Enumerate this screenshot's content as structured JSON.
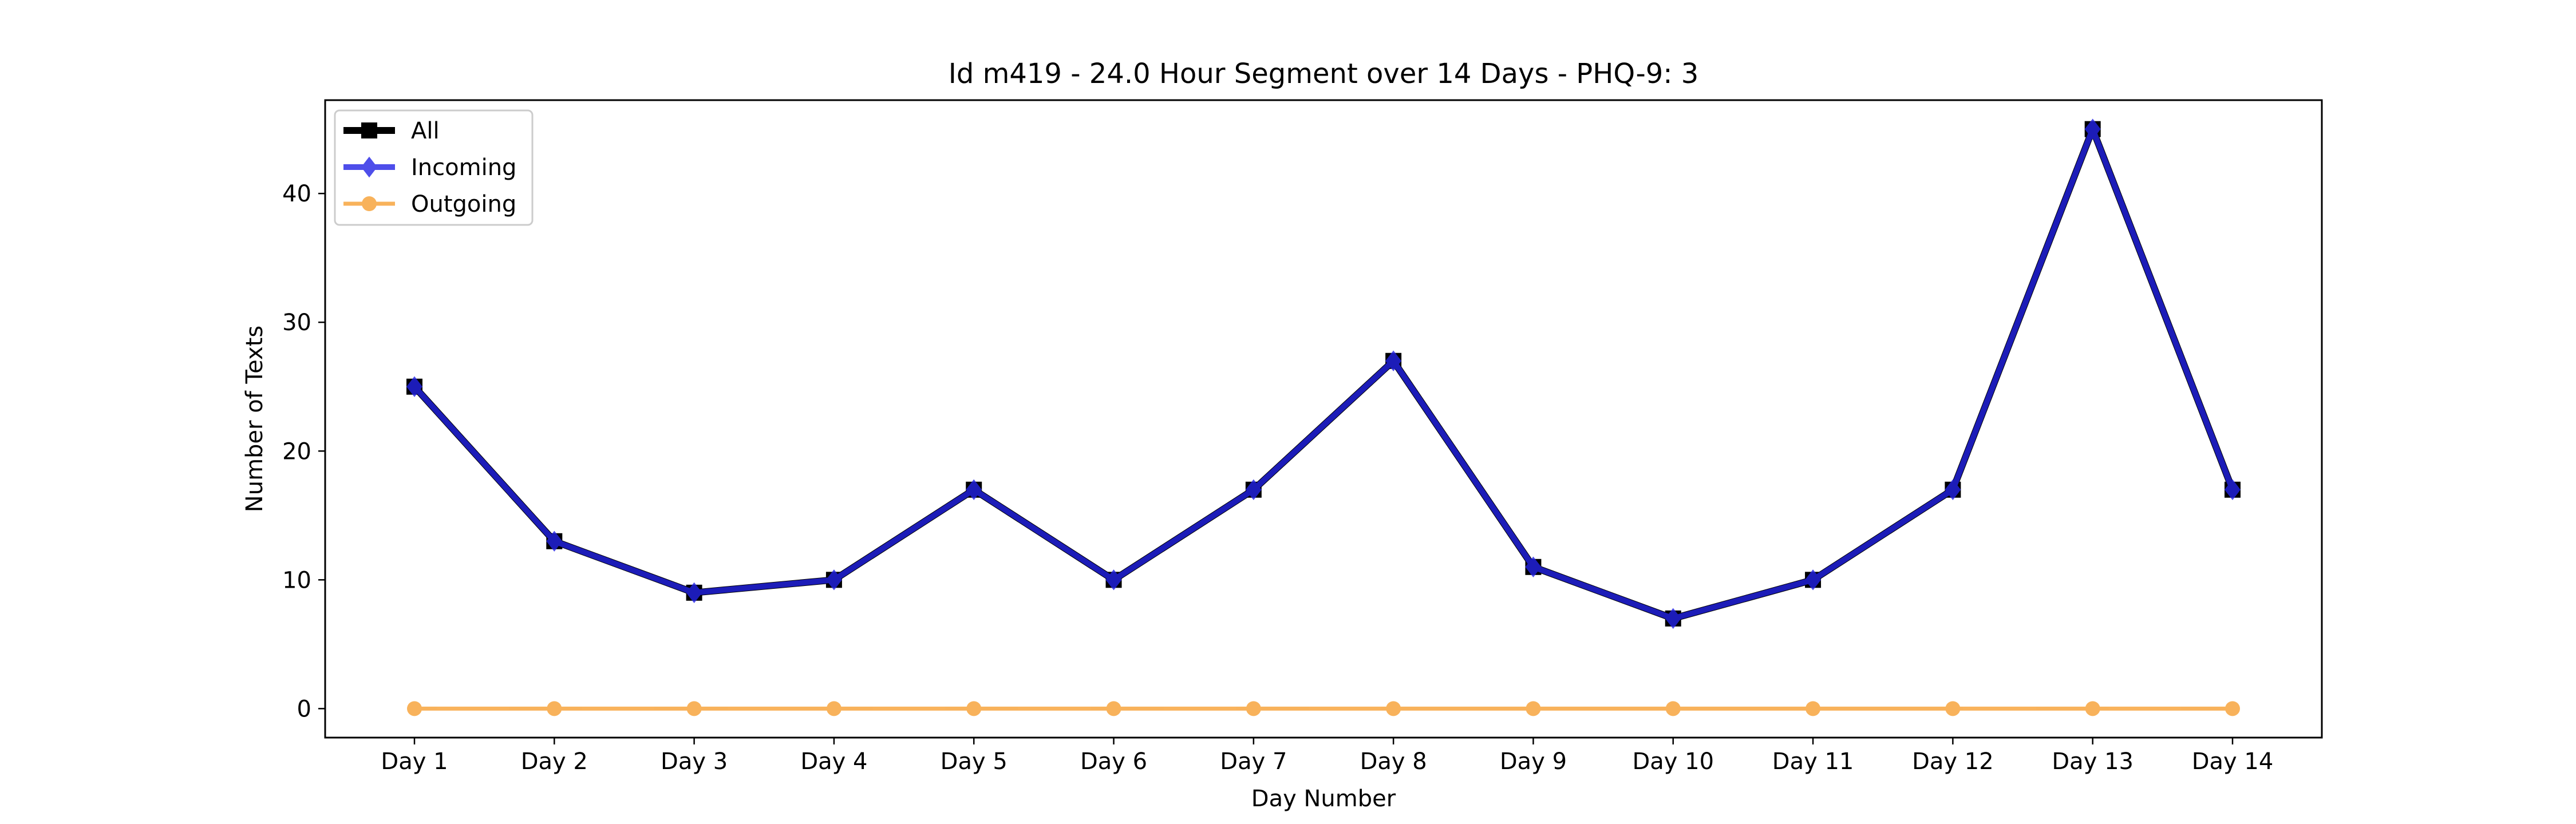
{
  "chart_data": {
    "type": "line",
    "title": "Id m419 - 24.0 Hour Segment over 14 Days - PHQ-9: 3",
    "xlabel": "Day Number",
    "ylabel": "Number of Texts",
    "categories": [
      "Day 1",
      "Day 2",
      "Day 3",
      "Day 4",
      "Day 5",
      "Day 6",
      "Day 7",
      "Day 8",
      "Day 9",
      "Day 10",
      "Day 11",
      "Day 12",
      "Day 13",
      "Day 14"
    ],
    "yticks": [
      0,
      10,
      20,
      30,
      40
    ],
    "ylim": [
      -2.25,
      47.25
    ],
    "grid": false,
    "legend_position": "top-left",
    "series": [
      {
        "name": "All",
        "color": "#000000",
        "marker": "square",
        "values": [
          25,
          13,
          9,
          10,
          17,
          10,
          17,
          27,
          11,
          7,
          10,
          17,
          45,
          17
        ]
      },
      {
        "name": "Incoming",
        "color": "#2323e6",
        "marker": "diamond",
        "values": [
          25,
          13,
          9,
          10,
          17,
          10,
          17,
          27,
          11,
          7,
          10,
          17,
          45,
          17
        ]
      },
      {
        "name": "Outgoing",
        "color": "#f7a033",
        "marker": "circle",
        "values": [
          0,
          0,
          0,
          0,
          0,
          0,
          0,
          0,
          0,
          0,
          0,
          0,
          0,
          0
        ]
      }
    ]
  }
}
